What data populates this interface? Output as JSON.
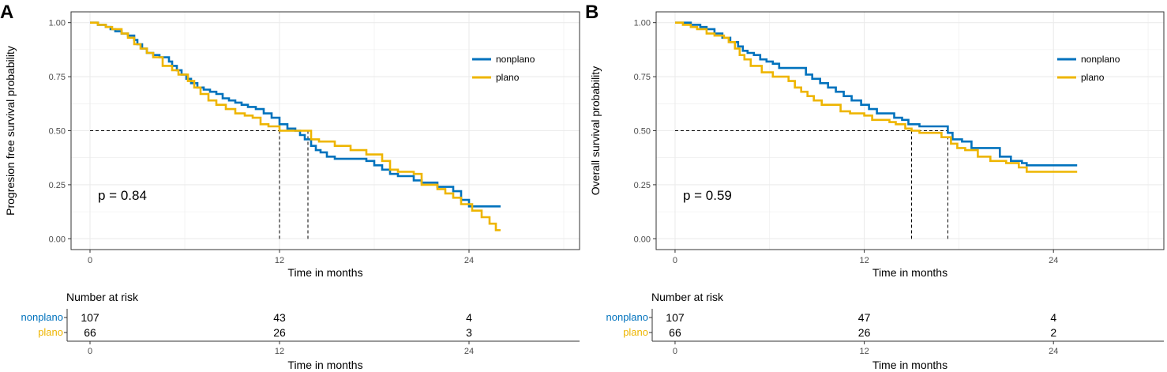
{
  "chart_data": [
    {
      "type": "line",
      "panel_label": "A",
      "ylabel": "Progresion free survival probability",
      "xlabel": "Time in months",
      "xlim": [
        -1.2,
        31
      ],
      "ylim": [
        -0.05,
        1.05
      ],
      "x_ticks": [
        0,
        12,
        24
      ],
      "x_tick_labels": [
        "0",
        "12",
        "24"
      ],
      "y_ticks": [
        0,
        0.25,
        0.5,
        0.75,
        1
      ],
      "y_tick_labels": [
        "0.00",
        "0.25",
        "0.50",
        "0.75",
        "1.00"
      ],
      "grid": true,
      "legend_position": "right",
      "p_value_text": "p = 0.84",
      "median_lines": [
        {
          "x": 12.0,
          "y": 0.5
        },
        {
          "x": 13.8,
          "y": 0.5
        }
      ],
      "series": [
        {
          "name": "nonplano",
          "color": "#0072BD",
          "points": [
            [
              0,
              1.0
            ],
            [
              0.5,
              0.99
            ],
            [
              1,
              0.98
            ],
            [
              1.3,
              0.97
            ],
            [
              1.6,
              0.96
            ],
            [
              2,
              0.95
            ],
            [
              2.4,
              0.94
            ],
            [
              2.8,
              0.92
            ],
            [
              3.0,
              0.9
            ],
            [
              3.3,
              0.88
            ],
            [
              3.6,
              0.86
            ],
            [
              4,
              0.85
            ],
            [
              4.4,
              0.84
            ],
            [
              4.8,
              0.84
            ],
            [
              5.0,
              0.82
            ],
            [
              5.2,
              0.8
            ],
            [
              5.5,
              0.78
            ],
            [
              5.8,
              0.76
            ],
            [
              6.1,
              0.74
            ],
            [
              6.4,
              0.72
            ],
            [
              6.8,
              0.7
            ],
            [
              7.2,
              0.69
            ],
            [
              7.6,
              0.68
            ],
            [
              8.0,
              0.67
            ],
            [
              8.4,
              0.65
            ],
            [
              8.8,
              0.64
            ],
            [
              9.2,
              0.63
            ],
            [
              9.6,
              0.62
            ],
            [
              10,
              0.61
            ],
            [
              10.5,
              0.6
            ],
            [
              11,
              0.58
            ],
            [
              11.5,
              0.56
            ],
            [
              12,
              0.53
            ],
            [
              12.5,
              0.51
            ],
            [
              13,
              0.5
            ],
            [
              13.3,
              0.48
            ],
            [
              13.6,
              0.46
            ],
            [
              14,
              0.43
            ],
            [
              14.3,
              0.41
            ],
            [
              14.6,
              0.4
            ],
            [
              15,
              0.38
            ],
            [
              15.5,
              0.37
            ],
            [
              16.5,
              0.37
            ],
            [
              17,
              0.37
            ],
            [
              17.5,
              0.36
            ],
            [
              18,
              0.34
            ],
            [
              18.5,
              0.32
            ],
            [
              19,
              0.3
            ],
            [
              19.5,
              0.29
            ],
            [
              20,
              0.29
            ],
            [
              20.5,
              0.27
            ],
            [
              21,
              0.26
            ],
            [
              22,
              0.24
            ],
            [
              23,
              0.22
            ],
            [
              23.5,
              0.18
            ],
            [
              24,
              0.15
            ],
            [
              26,
              0.15
            ]
          ]
        },
        {
          "name": "plano",
          "color": "#EEB500",
          "points": [
            [
              0,
              1.0
            ],
            [
              0.5,
              0.99
            ],
            [
              1,
              0.98
            ],
            [
              1.4,
              0.97
            ],
            [
              2,
              0.95
            ],
            [
              2.4,
              0.93
            ],
            [
              2.8,
              0.9
            ],
            [
              3.2,
              0.88
            ],
            [
              3.6,
              0.86
            ],
            [
              4,
              0.84
            ],
            [
              4.6,
              0.8
            ],
            [
              5.2,
              0.78
            ],
            [
              5.6,
              0.76
            ],
            [
              6.2,
              0.73
            ],
            [
              6.6,
              0.7
            ],
            [
              7.0,
              0.67
            ],
            [
              7.5,
              0.64
            ],
            [
              8,
              0.62
            ],
            [
              8.6,
              0.6
            ],
            [
              9.2,
              0.58
            ],
            [
              9.8,
              0.57
            ],
            [
              10.3,
              0.56
            ],
            [
              10.8,
              0.53
            ],
            [
              11.3,
              0.52
            ],
            [
              12,
              0.5
            ],
            [
              12.5,
              0.5
            ],
            [
              13.5,
              0.5
            ],
            [
              14,
              0.46
            ],
            [
              14.5,
              0.45
            ],
            [
              15.5,
              0.43
            ],
            [
              16.5,
              0.41
            ],
            [
              17.5,
              0.39
            ],
            [
              18.5,
              0.36
            ],
            [
              19,
              0.32
            ],
            [
              19.5,
              0.31
            ],
            [
              20.5,
              0.3
            ],
            [
              21,
              0.25
            ],
            [
              22,
              0.23
            ],
            [
              22.5,
              0.21
            ],
            [
              23,
              0.19
            ],
            [
              23.5,
              0.16
            ],
            [
              24.2,
              0.13
            ],
            [
              24.8,
              0.1
            ],
            [
              25.3,
              0.07
            ],
            [
              25.7,
              0.04
            ],
            [
              26,
              0.04
            ]
          ]
        }
      ],
      "risk_table": {
        "title": "Number at risk",
        "xlabel": "Time in months",
        "x_tick_labels": [
          "0",
          "12",
          "24"
        ],
        "rows": [
          {
            "name": "nonplano",
            "color": "#0072BD",
            "values": [
              "107",
              "43",
              "4"
            ]
          },
          {
            "name": "plano",
            "color": "#EEB500",
            "values": [
              "66",
              "26",
              "3"
            ]
          }
        ]
      }
    },
    {
      "type": "line",
      "panel_label": "B",
      "ylabel": "Overall survival probability",
      "xlabel": "Time in months",
      "xlim": [
        -1.2,
        31
      ],
      "ylim": [
        -0.05,
        1.05
      ],
      "x_ticks": [
        0,
        12,
        24
      ],
      "x_tick_labels": [
        "0",
        "12",
        "24"
      ],
      "y_ticks": [
        0,
        0.25,
        0.5,
        0.75,
        1
      ],
      "y_tick_labels": [
        "0.00",
        "0.25",
        "0.50",
        "0.75",
        "1.00"
      ],
      "grid": true,
      "legend_position": "right",
      "p_value_text": "p = 0.59",
      "median_lines": [
        {
          "x": 15.0,
          "y": 0.5
        },
        {
          "x": 17.3,
          "y": 0.5
        }
      ],
      "series": [
        {
          "name": "nonplano",
          "color": "#0072BD",
          "points": [
            [
              0,
              1.0
            ],
            [
              1,
              0.99
            ],
            [
              1.6,
              0.98
            ],
            [
              2,
              0.97
            ],
            [
              2.5,
              0.95
            ],
            [
              3,
              0.93
            ],
            [
              3.5,
              0.91
            ],
            [
              4,
              0.89
            ],
            [
              4.3,
              0.87
            ],
            [
              4.6,
              0.86
            ],
            [
              5,
              0.85
            ],
            [
              5.4,
              0.83
            ],
            [
              5.8,
              0.82
            ],
            [
              6.2,
              0.81
            ],
            [
              6.6,
              0.79
            ],
            [
              7.5,
              0.79
            ],
            [
              8.2,
              0.79
            ],
            [
              8.3,
              0.76
            ],
            [
              8.7,
              0.74
            ],
            [
              9.2,
              0.72
            ],
            [
              9.7,
              0.7
            ],
            [
              10.2,
              0.68
            ],
            [
              10.7,
              0.66
            ],
            [
              11.2,
              0.64
            ],
            [
              11.8,
              0.62
            ],
            [
              12.3,
              0.6
            ],
            [
              12.8,
              0.58
            ],
            [
              13.6,
              0.58
            ],
            [
              13.9,
              0.56
            ],
            [
              14.4,
              0.55
            ],
            [
              14.8,
              0.53
            ],
            [
              15.5,
              0.52
            ],
            [
              17.2,
              0.52
            ],
            [
              17.3,
              0.49
            ],
            [
              17.6,
              0.46
            ],
            [
              18.2,
              0.45
            ],
            [
              18.8,
              0.42
            ],
            [
              20.5,
              0.42
            ],
            [
              20.6,
              0.38
            ],
            [
              21.3,
              0.36
            ],
            [
              22,
              0.35
            ],
            [
              22.3,
              0.34
            ],
            [
              25.5,
              0.34
            ]
          ]
        },
        {
          "name": "plano",
          "color": "#EEB500",
          "points": [
            [
              0,
              1.0
            ],
            [
              0.5,
              0.99
            ],
            [
              1,
              0.98
            ],
            [
              1.4,
              0.97
            ],
            [
              2,
              0.95
            ],
            [
              2.5,
              0.94
            ],
            [
              3.1,
              0.93
            ],
            [
              3.4,
              0.91
            ],
            [
              3.8,
              0.88
            ],
            [
              4.1,
              0.85
            ],
            [
              4.4,
              0.83
            ],
            [
              4.8,
              0.8
            ],
            [
              5.5,
              0.77
            ],
            [
              6.2,
              0.75
            ],
            [
              7.2,
              0.73
            ],
            [
              7.6,
              0.7
            ],
            [
              8.0,
              0.68
            ],
            [
              8.4,
              0.66
            ],
            [
              8.8,
              0.64
            ],
            [
              9.3,
              0.62
            ],
            [
              10.2,
              0.62
            ],
            [
              10.5,
              0.59
            ],
            [
              11.1,
              0.58
            ],
            [
              12,
              0.57
            ],
            [
              12.5,
              0.55
            ],
            [
              13,
              0.55
            ],
            [
              13.6,
              0.54
            ],
            [
              14,
              0.53
            ],
            [
              14.6,
              0.51
            ],
            [
              15,
              0.5
            ],
            [
              15.5,
              0.49
            ],
            [
              16.5,
              0.49
            ],
            [
              16.9,
              0.47
            ],
            [
              17.5,
              0.44
            ],
            [
              17.9,
              0.42
            ],
            [
              18.4,
              0.41
            ],
            [
              19.2,
              0.38
            ],
            [
              20,
              0.36
            ],
            [
              20.5,
              0.36
            ],
            [
              21,
              0.35
            ],
            [
              21.8,
              0.33
            ],
            [
              22.3,
              0.31
            ],
            [
              25.5,
              0.31
            ]
          ]
        }
      ],
      "risk_table": {
        "title": "Number at risk",
        "xlabel": "Time in months",
        "x_tick_labels": [
          "0",
          "12",
          "24"
        ],
        "rows": [
          {
            "name": "nonplano",
            "color": "#0072BD",
            "values": [
              "107",
              "47",
              "4"
            ]
          },
          {
            "name": "plano",
            "color": "#EEB500",
            "values": [
              "66",
              "26",
              "2"
            ]
          }
        ]
      }
    }
  ]
}
